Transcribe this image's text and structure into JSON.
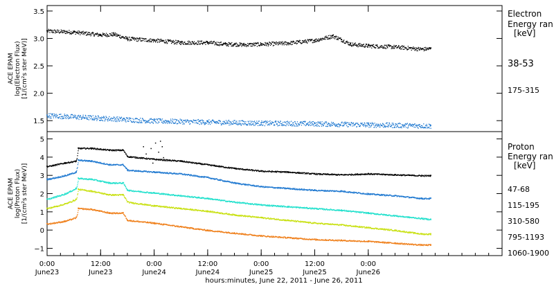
{
  "chart_data": [
    {
      "type": "scatter",
      "panel": "electron",
      "ylabel_lines": [
        "ACE EPAM",
        "log(Electron Flux)",
        "[1/(cm²s ster MeV)]"
      ],
      "ylim": [
        1.3,
        3.6
      ],
      "yticks": [
        1.5,
        2.0,
        2.5,
        3.0,
        3.5
      ],
      "ytick_labels": [
        "1.5",
        "2.0",
        "2.5",
        "3.0",
        "3.5"
      ],
      "legend_title": [
        "Electron",
        "Energy ran",
        "[keV]"
      ],
      "series": [
        {
          "name": "38-53",
          "color": "#000000",
          "x": [
            0,
            6,
            12,
            15,
            18,
            24,
            30,
            36,
            40,
            42,
            44,
            48,
            54,
            60,
            64,
            66,
            68,
            72,
            78,
            84,
            86
          ],
          "y": [
            3.14,
            3.12,
            3.07,
            3.08,
            3.0,
            2.97,
            2.93,
            2.93,
            2.9,
            2.9,
            2.89,
            2.9,
            2.92,
            2.97,
            3.05,
            2.98,
            2.9,
            2.87,
            2.85,
            2.81,
            2.82
          ]
        },
        {
          "name": "175-315",
          "color": "#1e78d0",
          "x": [
            0,
            12,
            24,
            36,
            48,
            60,
            72,
            86
          ],
          "y": [
            1.6,
            1.55,
            1.5,
            1.48,
            1.46,
            1.45,
            1.43,
            1.41
          ]
        }
      ]
    },
    {
      "type": "scatter",
      "panel": "proton",
      "ylabel_lines": [
        "ACE EPAM",
        "log(Proton Flux)",
        "[1/(cm²s ster MeV)]"
      ],
      "ylim": [
        -1.4,
        5.4
      ],
      "yticks": [
        -1,
        0,
        1,
        2,
        3,
        4,
        5
      ],
      "ytick_labels": [
        "−1",
        "0",
        "1",
        "2",
        "3",
        "4",
        "5"
      ],
      "legend_title": [
        "Proton",
        "Energy ran",
        "[keV]"
      ],
      "series": [
        {
          "name": "47-68",
          "color": "#000000",
          "x": [
            0,
            4,
            6.5,
            7,
            10,
            14,
            17,
            18,
            24,
            30,
            36,
            42,
            48,
            54,
            60,
            66,
            72,
            78,
            84,
            86
          ],
          "y": [
            3.5,
            3.7,
            3.8,
            4.5,
            4.5,
            4.4,
            4.4,
            4.05,
            3.9,
            3.8,
            3.6,
            3.4,
            3.25,
            3.2,
            3.1,
            3.05,
            3.1,
            3.05,
            3.0,
            3.0
          ]
        },
        {
          "name": "115-195",
          "color": "#1e78d0",
          "x": [
            0,
            4,
            6.5,
            7,
            10,
            14,
            17,
            18,
            24,
            30,
            36,
            42,
            48,
            54,
            60,
            66,
            72,
            78,
            84,
            86
          ],
          "y": [
            2.8,
            3.0,
            3.2,
            3.85,
            3.8,
            3.6,
            3.6,
            3.3,
            3.2,
            3.1,
            2.9,
            2.6,
            2.4,
            2.3,
            2.2,
            2.15,
            2.0,
            1.9,
            1.75,
            1.75
          ]
        },
        {
          "name": "310-580",
          "color": "#20e0cc",
          "x": [
            0,
            4,
            6.5,
            7,
            10,
            14,
            17,
            18,
            24,
            30,
            36,
            42,
            48,
            54,
            60,
            66,
            72,
            78,
            84,
            86
          ],
          "y": [
            1.7,
            2.0,
            2.3,
            2.85,
            2.8,
            2.6,
            2.6,
            2.2,
            2.05,
            1.9,
            1.75,
            1.55,
            1.4,
            1.3,
            1.2,
            1.1,
            0.95,
            0.8,
            0.65,
            0.6
          ]
        },
        {
          "name": "795-1193",
          "color": "#c8e010",
          "x": [
            0,
            4,
            6.5,
            7,
            10,
            14,
            17,
            18,
            24,
            30,
            36,
            42,
            48,
            54,
            60,
            66,
            72,
            78,
            84,
            86
          ],
          "y": [
            1.2,
            1.45,
            1.7,
            2.25,
            2.15,
            1.95,
            1.95,
            1.55,
            1.35,
            1.2,
            1.05,
            0.85,
            0.7,
            0.55,
            0.4,
            0.3,
            0.15,
            0.0,
            -0.2,
            -0.2
          ]
        },
        {
          "name": "1060-1900",
          "color": "#ef7f1a",
          "x": [
            0,
            4,
            6.5,
            7,
            10,
            14,
            17,
            18,
            24,
            30,
            36,
            42,
            48,
            54,
            60,
            66,
            72,
            78,
            84,
            86
          ],
          "y": [
            0.35,
            0.5,
            0.7,
            1.2,
            1.15,
            0.95,
            0.95,
            0.55,
            0.4,
            0.2,
            0.0,
            -0.15,
            -0.3,
            -0.4,
            -0.5,
            -0.55,
            -0.6,
            -0.7,
            -0.8,
            -0.8
          ]
        }
      ]
    }
  ],
  "xaxis": {
    "label": "hours:minutes, June 22, 2011 - June 26, 2011",
    "xlim": [
      0,
      102
    ],
    "ticks": [
      {
        "x": 0,
        "time": "0:00",
        "date": "June23"
      },
      {
        "x": 12,
        "time": "12:00",
        "date": "June23"
      },
      {
        "x": 24,
        "time": "0:00",
        "date": "June24"
      },
      {
        "x": 36,
        "time": "12:00",
        "date": "June24"
      },
      {
        "x": 48,
        "time": "0:00",
        "date": "June25"
      },
      {
        "x": 60,
        "time": "12:00",
        "date": "June25"
      },
      {
        "x": 72,
        "time": "0:00",
        "date": "June26"
      }
    ]
  }
}
